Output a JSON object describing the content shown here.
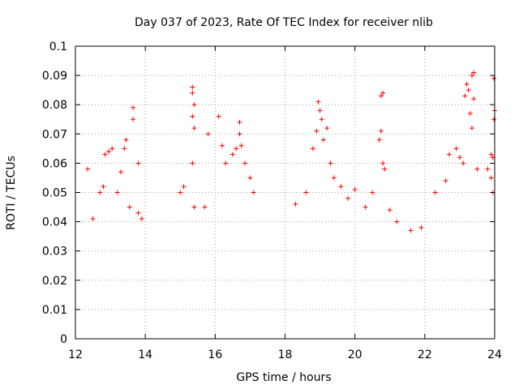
{
  "chart_data": {
    "type": "scatter",
    "title": "Day 037 of 2023, Rate Of TEC Index for receiver nlib",
    "xlabel": "GPS time / hours",
    "ylabel": "ROTI / TECUs",
    "xlim": [
      12,
      24
    ],
    "ylim": [
      0,
      0.1
    ],
    "xticks": [
      "12",
      "14",
      "16",
      "18",
      "20",
      "22",
      "24"
    ],
    "yticks": [
      "0",
      "0.01",
      "0.02",
      "0.03",
      "0.04",
      "0.05",
      "0.06",
      "0.07",
      "0.08",
      "0.09",
      "0.1"
    ],
    "grid": true,
    "marker": "+",
    "color": "#ff0000",
    "series": [
      {
        "name": "ROTI",
        "points": [
          [
            12.35,
            0.058
          ],
          [
            12.5,
            0.041
          ],
          [
            12.7,
            0.05
          ],
          [
            12.8,
            0.052
          ],
          [
            12.85,
            0.063
          ],
          [
            12.95,
            0.064
          ],
          [
            13.05,
            0.065
          ],
          [
            13.2,
            0.05
          ],
          [
            13.3,
            0.057
          ],
          [
            13.4,
            0.065
          ],
          [
            13.45,
            0.068
          ],
          [
            13.55,
            0.045
          ],
          [
            13.65,
            0.079
          ],
          [
            13.65,
            0.075
          ],
          [
            13.8,
            0.06
          ],
          [
            13.8,
            0.043
          ],
          [
            13.9,
            0.041
          ],
          [
            15.0,
            0.05
          ],
          [
            15.1,
            0.052
          ],
          [
            15.35,
            0.086
          ],
          [
            15.35,
            0.084
          ],
          [
            15.4,
            0.08
          ],
          [
            15.35,
            0.076
          ],
          [
            15.4,
            0.072
          ],
          [
            15.35,
            0.06
          ],
          [
            15.4,
            0.045
          ],
          [
            15.7,
            0.045
          ],
          [
            15.8,
            0.07
          ],
          [
            16.1,
            0.076
          ],
          [
            16.2,
            0.066
          ],
          [
            16.3,
            0.06
          ],
          [
            16.5,
            0.063
          ],
          [
            16.6,
            0.065
          ],
          [
            16.7,
            0.074
          ],
          [
            16.7,
            0.07
          ],
          [
            16.75,
            0.066
          ],
          [
            16.85,
            0.06
          ],
          [
            17.0,
            0.055
          ],
          [
            17.1,
            0.05
          ],
          [
            18.3,
            0.046
          ],
          [
            18.6,
            0.05
          ],
          [
            18.8,
            0.065
          ],
          [
            18.9,
            0.071
          ],
          [
            18.95,
            0.081
          ],
          [
            19.0,
            0.078
          ],
          [
            19.05,
            0.075
          ],
          [
            19.1,
            0.068
          ],
          [
            19.2,
            0.072
          ],
          [
            19.3,
            0.06
          ],
          [
            19.4,
            0.055
          ],
          [
            19.6,
            0.052
          ],
          [
            19.8,
            0.048
          ],
          [
            20.0,
            0.051
          ],
          [
            20.3,
            0.045
          ],
          [
            20.5,
            0.05
          ],
          [
            20.75,
            0.083
          ],
          [
            20.8,
            0.084
          ],
          [
            20.75,
            0.071
          ],
          [
            20.7,
            0.068
          ],
          [
            20.8,
            0.06
          ],
          [
            20.85,
            0.058
          ],
          [
            21.0,
            0.044
          ],
          [
            21.2,
            0.04
          ],
          [
            21.6,
            0.037
          ],
          [
            21.9,
            0.038
          ],
          [
            22.3,
            0.05
          ],
          [
            22.6,
            0.054
          ],
          [
            22.7,
            0.063
          ],
          [
            22.9,
            0.065
          ],
          [
            23.0,
            0.062
          ],
          [
            23.15,
            0.083
          ],
          [
            23.2,
            0.087
          ],
          [
            23.25,
            0.085
          ],
          [
            23.35,
            0.09
          ],
          [
            23.4,
            0.091
          ],
          [
            23.3,
            0.077
          ],
          [
            23.4,
            0.082
          ],
          [
            23.35,
            0.072
          ],
          [
            23.1,
            0.06
          ],
          [
            23.5,
            0.058
          ],
          [
            23.8,
            0.058
          ],
          [
            23.9,
            0.055
          ],
          [
            23.95,
            0.062
          ],
          [
            23.98,
            0.075
          ],
          [
            24.0,
            0.078
          ],
          [
            23.98,
            0.089
          ],
          [
            23.9,
            0.063
          ],
          [
            23.95,
            0.05
          ]
        ]
      }
    ]
  }
}
